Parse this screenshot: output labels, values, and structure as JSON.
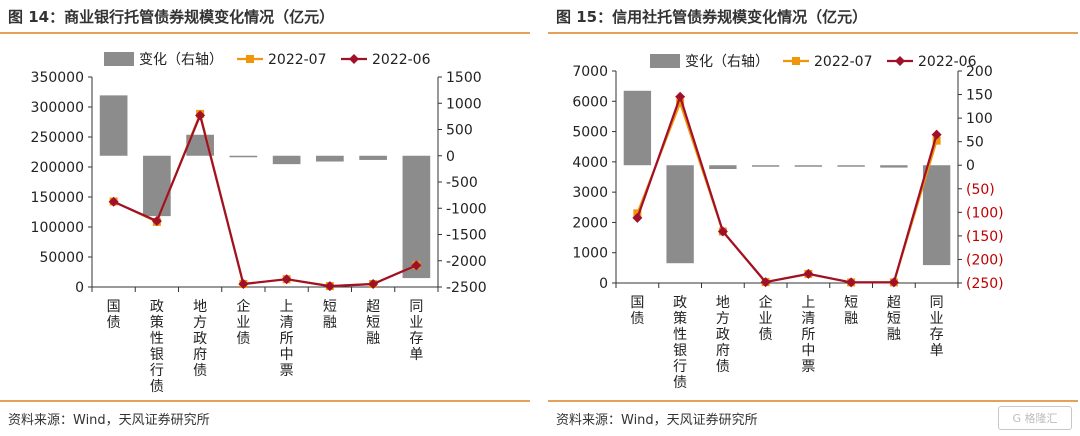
{
  "chart_data": [
    {
      "type": "bar+line",
      "title": "图 14：商业银行托管债券规模变化情况（亿元）",
      "source": "资料来源：Wind，天风证券研究所",
      "categories": [
        "国债",
        "政策性银行债",
        "地方政府债",
        "企业债",
        "上清所中票",
        "短融",
        "超短融",
        "同业存单"
      ],
      "legend": [
        "变化（右轴）",
        "2022-07",
        "2022-06"
      ],
      "legend_position": "top",
      "y_left": {
        "min": 0,
        "max": 350000,
        "ticks": [
          "0",
          "50000",
          "100000",
          "150000",
          "200000",
          "250000",
          "300000",
          "350000"
        ]
      },
      "y_right": {
        "min": -2500,
        "max": 1500,
        "ticks": [
          "-2500",
          "-2000",
          "-1500",
          "-1000",
          "-500",
          "0",
          "500",
          "1000",
          "1500"
        ]
      },
      "series": [
        {
          "name": "变化（右轴）",
          "type": "bar",
          "axis": "right",
          "color": "#8c8c8c",
          "values": [
            1150,
            -1150,
            400,
            -20,
            -160,
            -110,
            -80,
            -2330
          ]
        },
        {
          "name": "2022-07",
          "type": "line",
          "axis": "left",
          "color": "#f0960a",
          "values": [
            142500,
            108500,
            288500,
            5000,
            13000,
            1500,
            5000,
            36500
          ]
        },
        {
          "name": "2022-06",
          "type": "line",
          "axis": "left",
          "color": "#a0102a",
          "values": [
            142000,
            110000,
            286000,
            5000,
            13000,
            1500,
            5000,
            36000
          ]
        }
      ],
      "grid": false
    },
    {
      "type": "bar+line",
      "title": "图 15：信用社托管债券规模变化情况（亿元）",
      "source": "资料来源：Wind，天风证券研究所",
      "categories": [
        "国债",
        "政策性银行债",
        "地方政府债",
        "企业债",
        "上清所中票",
        "短融",
        "超短融",
        "同业存单"
      ],
      "legend": [
        "变化（右轴）",
        "2022-07",
        "2022-06"
      ],
      "legend_position": "top",
      "y_left": {
        "min": 0,
        "max": 7000,
        "ticks": [
          "0",
          "1000",
          "2000",
          "3000",
          "4000",
          "5000",
          "6000",
          "7000"
        ]
      },
      "y_right": {
        "min": -250,
        "max": 200,
        "ticks": [
          "(250)",
          "(200)",
          "(150)",
          "(100)",
          "(50)",
          "0",
          "50",
          "100",
          "150",
          "200"
        ]
      },
      "series": [
        {
          "name": "变化（右轴）",
          "type": "bar",
          "axis": "right",
          "color": "#8c8c8c",
          "values": [
            158,
            -208,
            -8,
            -1,
            -3,
            -1,
            -5,
            -212
          ]
        },
        {
          "name": "2022-07",
          "type": "line",
          "axis": "left",
          "color": "#f0960a",
          "values": [
            2300,
            5950,
            1700,
            30,
            300,
            20,
            20,
            4700
          ]
        },
        {
          "name": "2022-06",
          "type": "line",
          "axis": "left",
          "color": "#a0102a",
          "values": [
            2150,
            6150,
            1700,
            30,
            300,
            20,
            20,
            4900
          ]
        }
      ],
      "grid": false
    }
  ],
  "watermark": "格隆汇"
}
